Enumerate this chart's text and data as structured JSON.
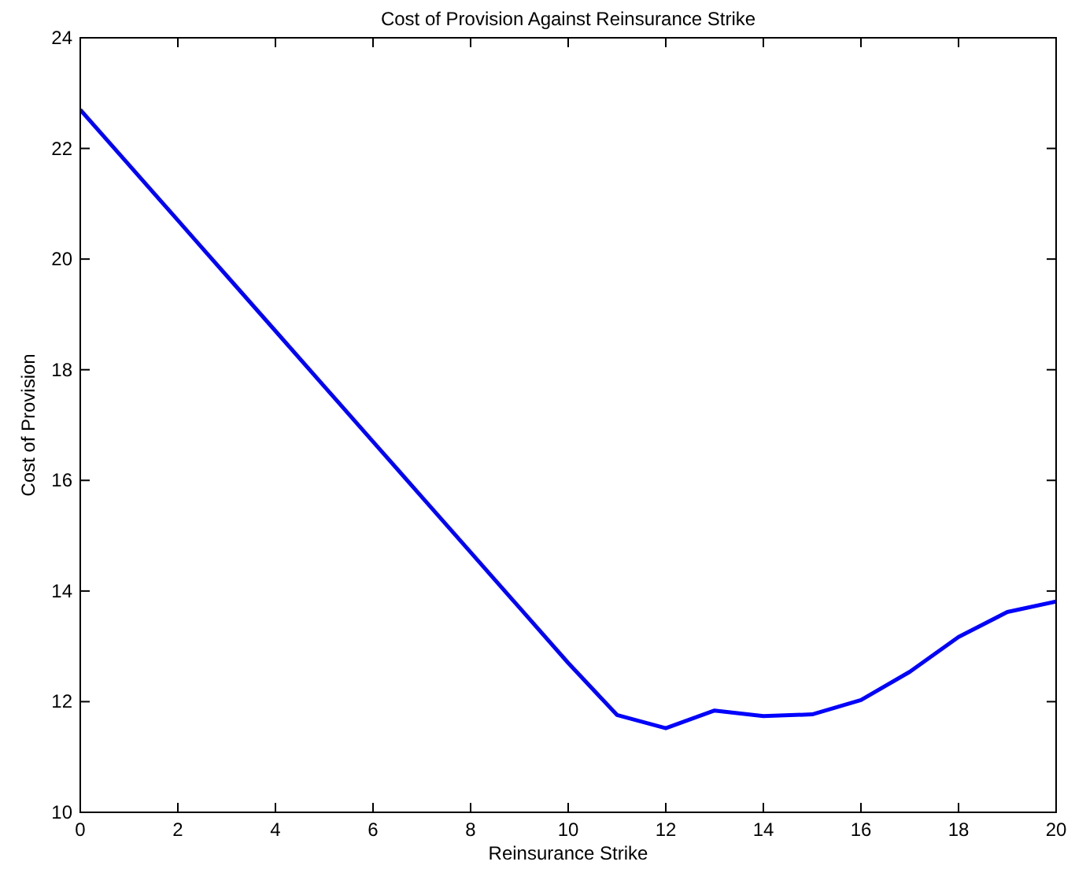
{
  "chart_data": {
    "type": "line",
    "title": "Cost of Provision Against Reinsurance Strike",
    "xlabel": "Reinsurance Strike",
    "ylabel": "Cost of Provision",
    "x": [
      0,
      1,
      2,
      3,
      4,
      5,
      6,
      7,
      8,
      9,
      10,
      11,
      12,
      13,
      14,
      15,
      16,
      17,
      18,
      19,
      20
    ],
    "series": [
      {
        "color": "#0000ff",
        "values": [
          22.7,
          21.7,
          20.7,
          19.7,
          18.7,
          17.7,
          16.7,
          15.7,
          14.7,
          13.7,
          12.7,
          11.76,
          11.52,
          11.84,
          11.74,
          11.77,
          12.03,
          12.54,
          13.17,
          13.62,
          13.81
        ]
      }
    ],
    "xlim": [
      0,
      20
    ],
    "xticks": [
      0,
      2,
      4,
      6,
      8,
      10,
      12,
      14,
      16,
      18,
      20
    ],
    "ylim": [
      10,
      24
    ],
    "yticks": [
      10,
      12,
      14,
      16,
      18,
      20,
      22,
      24
    ],
    "grid": false,
    "marker": "none",
    "line_style": "solid"
  }
}
